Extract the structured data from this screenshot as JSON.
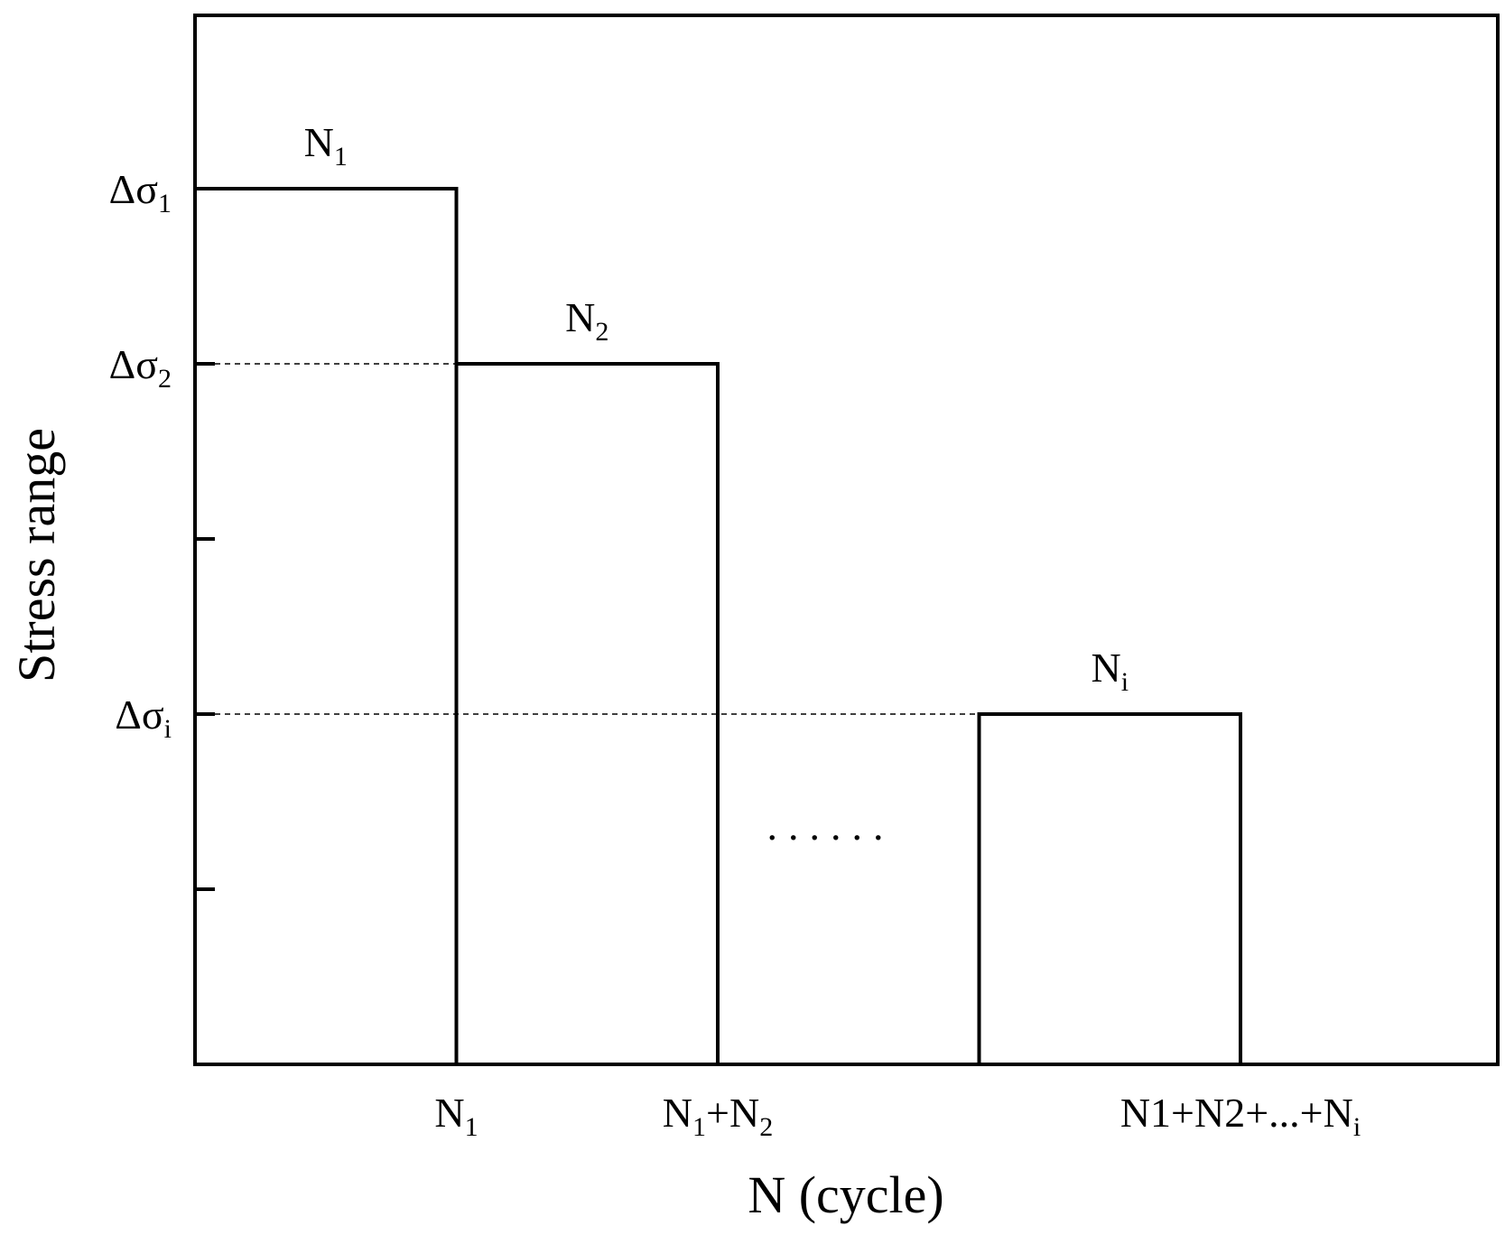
{
  "chart_data": {
    "type": "bar",
    "description_type": "stress-range block histogram",
    "xlabel": "N (cycle)",
    "ylabel": "Stress range",
    "y_ticks": [
      {
        "base": "Δσ",
        "sub": "1"
      },
      {
        "base": "Δσ",
        "sub": "2"
      },
      {
        "base": "Δσ",
        "sub": "i"
      }
    ],
    "x_ticks": [
      {
        "parts": [
          {
            "t": "N"
          },
          {
            "s": "1"
          }
        ]
      },
      {
        "parts": [
          {
            "t": "N"
          },
          {
            "s": "1"
          },
          {
            "t": "+N"
          },
          {
            "s": "2"
          }
        ]
      },
      {
        "parts": [
          {
            "t": "N1+N2+...+N"
          },
          {
            "s": "i"
          }
        ]
      }
    ],
    "blocks": [
      {
        "base": "N",
        "sub": "1",
        "x_start": 0,
        "x_end": 1,
        "level": 5
      },
      {
        "base": "N",
        "sub": "2",
        "x_start": 1,
        "x_end": 2,
        "level": 4
      },
      {
        "base": "N",
        "sub": "i",
        "x_start": 3,
        "x_end": 4,
        "level": 2
      }
    ],
    "ellipsis": "......",
    "xlim": [
      0,
      5
    ],
    "ylim": [
      0,
      6
    ],
    "unlabeled_y_ticks": [
      3,
      1
    ],
    "grid": false,
    "reference_lines": "dashed at Δσ2 and Δσi"
  }
}
